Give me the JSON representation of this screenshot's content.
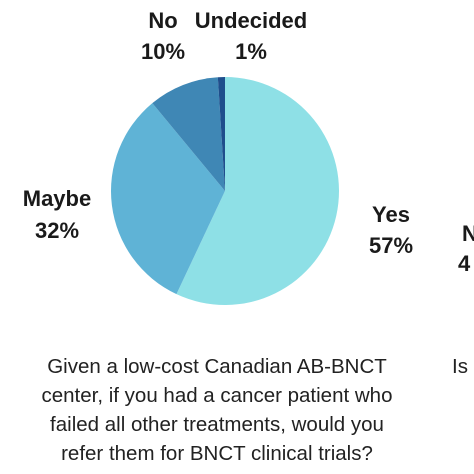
{
  "chart_data": {
    "type": "pie",
    "slices": [
      {
        "label": "Yes",
        "value": 57,
        "value_label": "57%",
        "color": "#8ee0e6"
      },
      {
        "label": "Maybe",
        "value": 32,
        "value_label": "32%",
        "color": "#5fb3d6"
      },
      {
        "label": "No",
        "value": 10,
        "value_label": "10%",
        "color": "#3f87b5"
      },
      {
        "label": "Undecided",
        "value": 1,
        "value_label": "1%",
        "color": "#1f4e8c"
      }
    ]
  },
  "caption": {
    "lines": [
      "Given a low-cost Canadian AB-BNCT",
      "center, if you had a cancer patient who",
      "failed all other treatments, would you",
      "refer them for BNCT clinical trials?"
    ]
  },
  "partial_right": {
    "caption_fragment": "Is",
    "label_fragment": "N",
    "value_fragment": "4"
  }
}
